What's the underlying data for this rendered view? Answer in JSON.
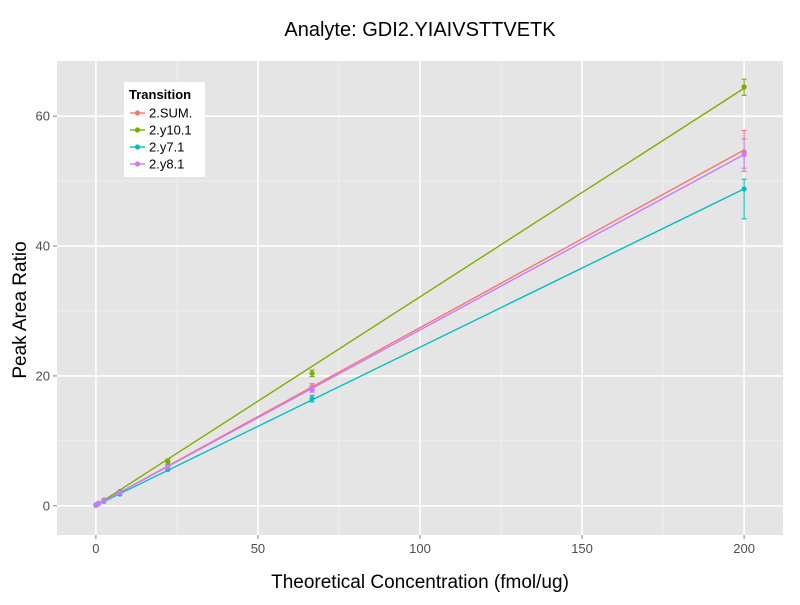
{
  "chart_data": {
    "type": "line",
    "title": "Analyte: GDI2.YIAIVSTTVETK",
    "xlabel": "Theoretical Concentration (fmol/ug)",
    "ylabel": "Peak Area Ratio",
    "xlim": [
      -12,
      212
    ],
    "ylim": [
      -4.5,
      68.5
    ],
    "x_ticks": [
      0,
      50,
      100,
      150,
      200
    ],
    "y_ticks": [
      0,
      20,
      40,
      60
    ],
    "grid": true,
    "legend": {
      "title": "Transition",
      "position": "top-left"
    },
    "series": [
      {
        "name": "2.SUM.",
        "color": "#F8766D",
        "fit": [
          [
            0,
            0.05
          ],
          [
            200,
            54.8
          ]
        ],
        "points": [
          {
            "x": 0,
            "y": 0.1
          },
          {
            "x": 0.3,
            "y": 0.2
          },
          {
            "x": 0.8,
            "y": 0.35
          },
          {
            "x": 2.5,
            "y": 0.8
          },
          {
            "x": 7.4,
            "y": 2.0
          },
          {
            "x": 22.2,
            "y": 6.2
          },
          {
            "x": 66.7,
            "y": 18.3
          },
          {
            "x": 200,
            "y": 54.5
          }
        ],
        "error_bars": [
          {
            "x": 66.7,
            "low": 17.8,
            "high": 18.8
          },
          {
            "x": 200,
            "low": 51.5,
            "high": 57.8
          }
        ]
      },
      {
        "name": "2.y10.1",
        "color": "#7CAE00",
        "fit": [
          [
            0,
            0.05
          ],
          [
            200,
            64.3
          ]
        ],
        "points": [
          {
            "x": 0,
            "y": 0.1
          },
          {
            "x": 0.3,
            "y": 0.25
          },
          {
            "x": 0.8,
            "y": 0.4
          },
          {
            "x": 2.5,
            "y": 0.9
          },
          {
            "x": 7.4,
            "y": 2.2
          },
          {
            "x": 22.2,
            "y": 6.8
          },
          {
            "x": 66.7,
            "y": 20.4
          },
          {
            "x": 200,
            "y": 64.5
          }
        ],
        "error_bars": [
          {
            "x": 22.2,
            "low": 6.4,
            "high": 7.2
          },
          {
            "x": 66.7,
            "low": 19.9,
            "high": 20.9
          },
          {
            "x": 200,
            "low": 63.2,
            "high": 65.7
          }
        ]
      },
      {
        "name": "2.y7.1",
        "color": "#00BFC4",
        "fit": [
          [
            0,
            0.05
          ],
          [
            200,
            48.8
          ]
        ],
        "points": [
          {
            "x": 0,
            "y": 0.1
          },
          {
            "x": 0.3,
            "y": 0.2
          },
          {
            "x": 0.8,
            "y": 0.3
          },
          {
            "x": 2.5,
            "y": 0.7
          },
          {
            "x": 7.4,
            "y": 1.8
          },
          {
            "x": 22.2,
            "y": 5.6
          },
          {
            "x": 66.7,
            "y": 16.5
          },
          {
            "x": 200,
            "y": 48.8
          }
        ],
        "error_bars": [
          {
            "x": 66.7,
            "low": 16.0,
            "high": 17.0
          },
          {
            "x": 200,
            "low": 44.2,
            "high": 50.3
          }
        ]
      },
      {
        "name": "2.y8.1",
        "color": "#C77CFF",
        "fit": [
          [
            0,
            0.05
          ],
          [
            200,
            54.1
          ]
        ],
        "points": [
          {
            "x": 0,
            "y": 0.1
          },
          {
            "x": 0.3,
            "y": 0.2
          },
          {
            "x": 0.8,
            "y": 0.35
          },
          {
            "x": 2.5,
            "y": 0.8
          },
          {
            "x": 7.4,
            "y": 2.0
          },
          {
            "x": 22.2,
            "y": 6.0
          },
          {
            "x": 66.7,
            "y": 17.9
          },
          {
            "x": 200,
            "y": 54.1
          }
        ],
        "error_bars": [
          {
            "x": 66.7,
            "low": 17.5,
            "high": 18.4
          },
          {
            "x": 200,
            "low": 52.0,
            "high": 56.5
          }
        ]
      }
    ]
  }
}
